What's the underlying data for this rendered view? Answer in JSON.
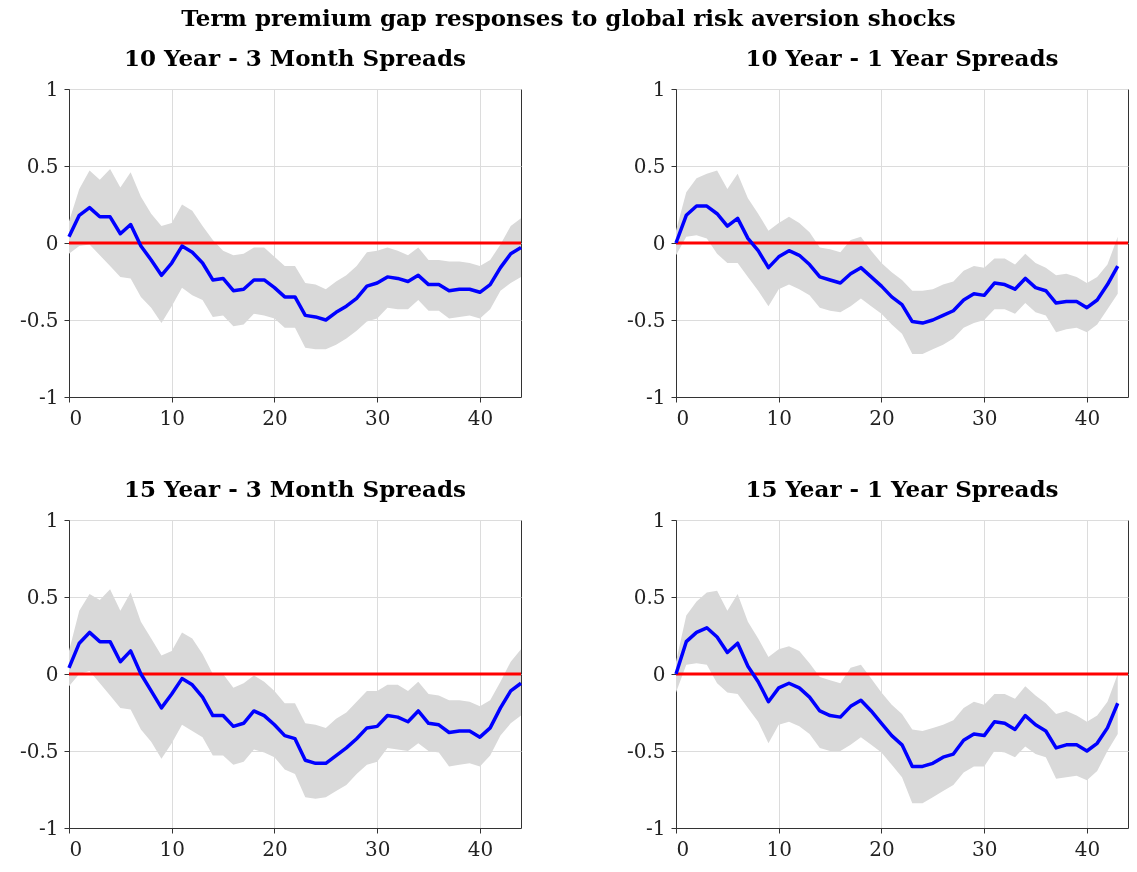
{
  "chart_data": [
    {
      "type": "line",
      "title": "10 Year - 3 Month Spreads",
      "annotations": [
        "Term premium gap responses to global risk aversion shocks"
      ],
      "x": [
        0,
        1,
        2,
        3,
        4,
        5,
        6,
        7,
        8,
        9,
        10,
        11,
        12,
        13,
        14,
        15,
        16,
        17,
        18,
        19,
        20,
        21,
        22,
        23,
        24,
        25,
        26,
        27,
        28,
        29,
        30,
        31,
        32,
        33,
        34,
        35,
        36,
        37,
        38,
        39,
        40,
        41,
        42,
        43,
        44
      ],
      "xlim": [
        0,
        44
      ],
      "xticks": [
        0,
        10,
        20,
        30,
        40
      ],
      "ylim": [
        -1,
        1
      ],
      "yticks": [
        -1,
        -0.5,
        0,
        0.5,
        1
      ],
      "grid": true,
      "ref_lines": [
        {
          "axis": "y",
          "value": 0,
          "color": "#ff0000"
        }
      ],
      "series": [
        {
          "color": "#0000ff",
          "values": [
            0.04,
            0.18,
            0.23,
            0.17,
            0.17,
            0.06,
            0.12,
            -0.02,
            -0.11,
            -0.21,
            -0.13,
            -0.02,
            -0.06,
            -0.13,
            -0.24,
            -0.23,
            -0.31,
            -0.3,
            -0.24,
            -0.24,
            -0.29,
            -0.35,
            -0.35,
            -0.47,
            -0.48,
            -0.5,
            -0.45,
            -0.41,
            -0.36,
            -0.28,
            -0.26,
            -0.22,
            -0.23,
            -0.25,
            -0.21,
            -0.27,
            -0.27,
            -0.31,
            -0.3,
            -0.3,
            -0.32,
            -0.27,
            -0.16,
            -0.07,
            -0.03
          ],
          "upper": [
            0.14,
            0.35,
            0.47,
            0.41,
            0.48,
            0.36,
            0.46,
            0.3,
            0.19,
            0.11,
            0.13,
            0.25,
            0.21,
            0.11,
            0.02,
            -0.05,
            -0.08,
            -0.07,
            -0.03,
            -0.03,
            -0.09,
            -0.15,
            -0.15,
            -0.26,
            -0.27,
            -0.3,
            -0.25,
            -0.21,
            -0.15,
            -0.06,
            -0.05,
            -0.03,
            -0.05,
            -0.08,
            -0.03,
            -0.11,
            -0.11,
            -0.12,
            -0.12,
            -0.13,
            -0.15,
            -0.11,
            -0.01,
            0.11,
            0.16
          ],
          "lower": [
            -0.07,
            -0.02,
            -0.01,
            -0.08,
            -0.15,
            -0.22,
            -0.23,
            -0.35,
            -0.42,
            -0.52,
            -0.41,
            -0.29,
            -0.34,
            -0.37,
            -0.48,
            -0.47,
            -0.54,
            -0.53,
            -0.46,
            -0.47,
            -0.49,
            -0.55,
            -0.55,
            -0.68,
            -0.69,
            -0.69,
            -0.66,
            -0.62,
            -0.57,
            -0.51,
            -0.49,
            -0.42,
            -0.43,
            -0.43,
            -0.37,
            -0.44,
            -0.44,
            -0.49,
            -0.48,
            -0.47,
            -0.49,
            -0.43,
            -0.31,
            -0.26,
            -0.22
          ]
        }
      ]
    },
    {
      "type": "line",
      "title": "10 Year - 1 Year Spreads",
      "x": [
        0,
        1,
        2,
        3,
        4,
        5,
        6,
        7,
        8,
        9,
        10,
        11,
        12,
        13,
        14,
        15,
        16,
        17,
        18,
        19,
        20,
        21,
        22,
        23,
        24,
        25,
        26,
        27,
        28,
        29,
        30,
        31,
        32,
        33,
        34,
        35,
        36,
        37,
        38,
        39,
        40,
        41,
        42,
        43
      ],
      "xlim": [
        0,
        44
      ],
      "xticks": [
        0,
        10,
        20,
        30,
        40
      ],
      "ylim": [
        -1,
        1
      ],
      "yticks": [
        -1,
        -0.5,
        0,
        0.5,
        1
      ],
      "grid": true,
      "ref_lines": [
        {
          "axis": "y",
          "value": 0,
          "color": "#ff0000"
        }
      ],
      "series": [
        {
          "color": "#0000ff",
          "values": [
            0.0,
            0.18,
            0.24,
            0.24,
            0.19,
            0.11,
            0.16,
            0.03,
            -0.05,
            -0.16,
            -0.09,
            -0.05,
            -0.08,
            -0.14,
            -0.22,
            -0.24,
            -0.26,
            -0.2,
            -0.16,
            -0.22,
            -0.28,
            -0.35,
            -0.4,
            -0.51,
            -0.52,
            -0.5,
            -0.47,
            -0.44,
            -0.37,
            -0.33,
            -0.34,
            -0.26,
            -0.27,
            -0.3,
            -0.23,
            -0.29,
            -0.31,
            -0.39,
            -0.38,
            -0.38,
            -0.42,
            -0.37,
            -0.27,
            -0.15
          ],
          "upper": [
            0.08,
            0.33,
            0.42,
            0.45,
            0.47,
            0.35,
            0.45,
            0.29,
            0.19,
            0.08,
            0.13,
            0.17,
            0.13,
            0.07,
            -0.03,
            -0.04,
            -0.06,
            0.02,
            0.04,
            -0.05,
            -0.13,
            -0.19,
            -0.24,
            -0.31,
            -0.31,
            -0.3,
            -0.27,
            -0.25,
            -0.18,
            -0.15,
            -0.16,
            -0.1,
            -0.1,
            -0.14,
            -0.07,
            -0.13,
            -0.16,
            -0.21,
            -0.2,
            -0.22,
            -0.26,
            -0.22,
            -0.14,
            0.04
          ],
          "lower": [
            -0.08,
            0.04,
            0.05,
            0.03,
            -0.07,
            -0.13,
            -0.13,
            -0.22,
            -0.31,
            -0.41,
            -0.3,
            -0.27,
            -0.3,
            -0.34,
            -0.42,
            -0.44,
            -0.45,
            -0.41,
            -0.36,
            -0.41,
            -0.46,
            -0.53,
            -0.59,
            -0.72,
            -0.72,
            -0.69,
            -0.66,
            -0.62,
            -0.55,
            -0.52,
            -0.5,
            -0.43,
            -0.43,
            -0.46,
            -0.39,
            -0.45,
            -0.47,
            -0.58,
            -0.56,
            -0.55,
            -0.58,
            -0.53,
            -0.43,
            -0.33
          ]
        }
      ]
    },
    {
      "type": "line",
      "title": "15 Year - 3 Month Spreads",
      "x": [
        0,
        1,
        2,
        3,
        4,
        5,
        6,
        7,
        8,
        9,
        10,
        11,
        12,
        13,
        14,
        15,
        16,
        17,
        18,
        19,
        20,
        21,
        22,
        23,
        24,
        25,
        26,
        27,
        28,
        29,
        30,
        31,
        32,
        33,
        34,
        35,
        36,
        37,
        38,
        39,
        40,
        41,
        42,
        43,
        44
      ],
      "xlim": [
        0,
        44
      ],
      "xticks": [
        0,
        10,
        20,
        30,
        40
      ],
      "ylim": [
        -1,
        1
      ],
      "yticks": [
        -1,
        -0.5,
        0,
        0.5,
        1
      ],
      "grid": true,
      "ref_lines": [
        {
          "axis": "y",
          "value": 0,
          "color": "#ff0000"
        }
      ],
      "series": [
        {
          "color": "#0000ff",
          "values": [
            0.04,
            0.2,
            0.27,
            0.21,
            0.21,
            0.08,
            0.15,
            0.0,
            -0.11,
            -0.22,
            -0.13,
            -0.03,
            -0.07,
            -0.15,
            -0.27,
            -0.27,
            -0.34,
            -0.32,
            -0.24,
            -0.27,
            -0.33,
            -0.4,
            -0.42,
            -0.56,
            -0.58,
            -0.58,
            -0.53,
            -0.48,
            -0.42,
            -0.35,
            -0.34,
            -0.27,
            -0.28,
            -0.31,
            -0.24,
            -0.32,
            -0.33,
            -0.38,
            -0.37,
            -0.37,
            -0.41,
            -0.35,
            -0.22,
            -0.11,
            -0.06
          ],
          "upper": [
            0.15,
            0.41,
            0.52,
            0.48,
            0.55,
            0.41,
            0.53,
            0.34,
            0.23,
            0.12,
            0.15,
            0.27,
            0.23,
            0.13,
            0.0,
            0.0,
            -0.09,
            -0.06,
            -0.01,
            -0.05,
            -0.11,
            -0.19,
            -0.19,
            -0.32,
            -0.33,
            -0.35,
            -0.29,
            -0.25,
            -0.18,
            -0.11,
            -0.11,
            -0.07,
            -0.07,
            -0.11,
            -0.05,
            -0.13,
            -0.14,
            -0.17,
            -0.17,
            -0.18,
            -0.21,
            -0.17,
            -0.05,
            0.08,
            0.16
          ],
          "lower": [
            -0.08,
            0.0,
            0.02,
            -0.06,
            -0.14,
            -0.22,
            -0.23,
            -0.36,
            -0.44,
            -0.55,
            -0.45,
            -0.33,
            -0.37,
            -0.41,
            -0.53,
            -0.53,
            -0.59,
            -0.57,
            -0.49,
            -0.51,
            -0.54,
            -0.62,
            -0.65,
            -0.8,
            -0.81,
            -0.8,
            -0.76,
            -0.72,
            -0.65,
            -0.59,
            -0.57,
            -0.48,
            -0.49,
            -0.5,
            -0.45,
            -0.5,
            -0.51,
            -0.6,
            -0.59,
            -0.58,
            -0.6,
            -0.53,
            -0.4,
            -0.32,
            -0.27
          ]
        }
      ]
    },
    {
      "type": "line",
      "title": "15 Year - 1 Year Spreads",
      "x": [
        0,
        1,
        2,
        3,
        4,
        5,
        6,
        7,
        8,
        9,
        10,
        11,
        12,
        13,
        14,
        15,
        16,
        17,
        18,
        19,
        20,
        21,
        22,
        23,
        24,
        25,
        26,
        27,
        28,
        29,
        30,
        31,
        32,
        33,
        34,
        35,
        36,
        37,
        38,
        39,
        40,
        41,
        42,
        43
      ],
      "xlim": [
        0,
        44
      ],
      "xticks": [
        0,
        10,
        20,
        30,
        40
      ],
      "ylim": [
        -1,
        1
      ],
      "yticks": [
        -1,
        -0.5,
        0,
        0.5,
        1
      ],
      "grid": true,
      "ref_lines": [
        {
          "axis": "y",
          "value": 0,
          "color": "#ff0000"
        }
      ],
      "series": [
        {
          "color": "#0000ff",
          "values": [
            0.0,
            0.21,
            0.27,
            0.3,
            0.24,
            0.14,
            0.2,
            0.05,
            -0.05,
            -0.18,
            -0.09,
            -0.06,
            -0.09,
            -0.15,
            -0.24,
            -0.27,
            -0.28,
            -0.21,
            -0.17,
            -0.24,
            -0.32,
            -0.4,
            -0.46,
            -0.6,
            -0.6,
            -0.58,
            -0.54,
            -0.52,
            -0.43,
            -0.39,
            -0.4,
            -0.31,
            -0.32,
            -0.36,
            -0.27,
            -0.33,
            -0.37,
            -0.48,
            -0.46,
            -0.46,
            -0.5,
            -0.45,
            -0.35,
            -0.19
          ],
          "upper": [
            0.08,
            0.38,
            0.47,
            0.53,
            0.54,
            0.41,
            0.52,
            0.34,
            0.23,
            0.11,
            0.16,
            0.18,
            0.15,
            0.07,
            -0.02,
            -0.04,
            -0.06,
            0.04,
            0.06,
            -0.03,
            -0.12,
            -0.2,
            -0.26,
            -0.36,
            -0.37,
            -0.35,
            -0.33,
            -0.3,
            -0.22,
            -0.18,
            -0.2,
            -0.13,
            -0.13,
            -0.16,
            -0.08,
            -0.14,
            -0.19,
            -0.26,
            -0.24,
            -0.27,
            -0.31,
            -0.27,
            -0.18,
            0.0
          ],
          "lower": [
            -0.12,
            0.06,
            0.07,
            0.06,
            -0.06,
            -0.12,
            -0.13,
            -0.22,
            -0.31,
            -0.45,
            -0.33,
            -0.31,
            -0.34,
            -0.39,
            -0.48,
            -0.5,
            -0.5,
            -0.46,
            -0.41,
            -0.46,
            -0.51,
            -0.59,
            -0.67,
            -0.84,
            -0.84,
            -0.8,
            -0.76,
            -0.72,
            -0.64,
            -0.6,
            -0.6,
            -0.5,
            -0.51,
            -0.54,
            -0.47,
            -0.52,
            -0.54,
            -0.68,
            -0.67,
            -0.66,
            -0.69,
            -0.63,
            -0.5,
            -0.39
          ]
        }
      ]
    }
  ]
}
